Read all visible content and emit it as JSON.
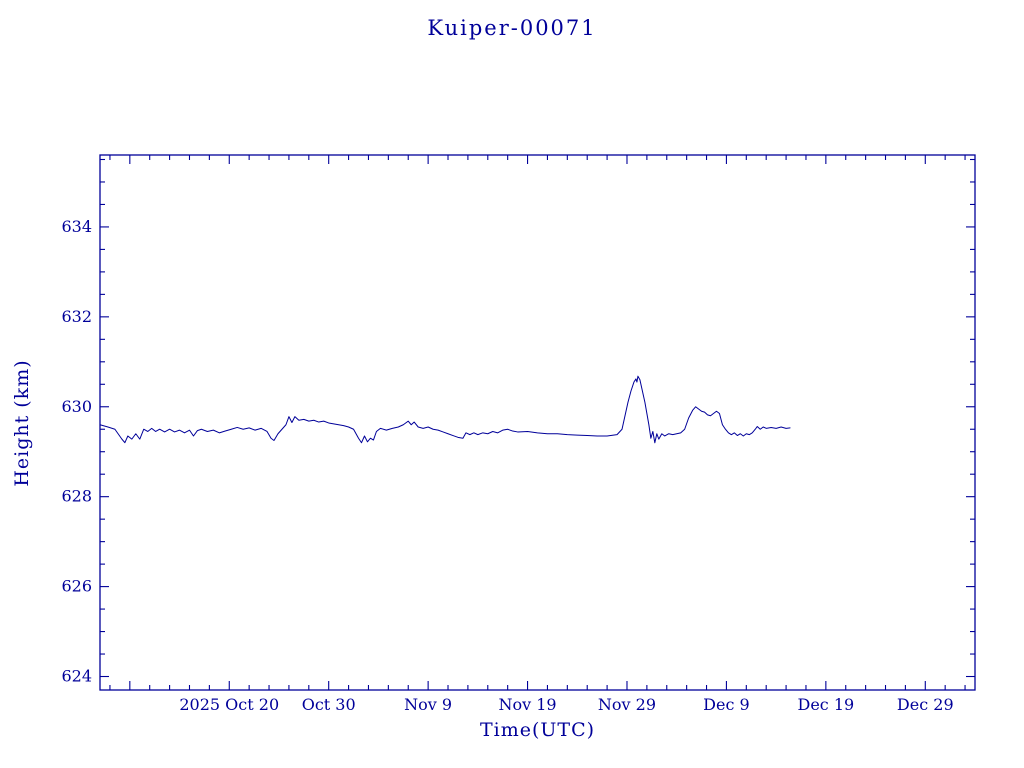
{
  "page": {
    "background": "#ffffff",
    "accent_color": "#000099"
  },
  "chart_data": {
    "type": "line",
    "title": "Kuiper-00071",
    "xlabel": "Time(UTC)",
    "ylabel": "Height (km)",
    "grid": false,
    "legend": false,
    "color": "#000099",
    "background": "#ffffff",
    "x_axis": {
      "units": "days, 0 = left axis edge (approx 2025 Oct 07)",
      "lim": [
        0,
        88
      ],
      "major_ticks": [
        {
          "pos": 13,
          "label": "2025 Oct 20"
        },
        {
          "pos": 23,
          "label": "Oct 30"
        },
        {
          "pos": 33,
          "label": "Nov 9"
        },
        {
          "pos": 43,
          "label": "Nov 19"
        },
        {
          "pos": 53,
          "label": "Nov 29"
        },
        {
          "pos": 63,
          "label": "Dec 9"
        },
        {
          "pos": 73,
          "label": "Dec 19"
        },
        {
          "pos": 83,
          "label": "Dec 29"
        }
      ],
      "unlabeled_major_ticks": [
        3
      ],
      "minor_step": 2
    },
    "y_axis": {
      "units": "km",
      "lim": [
        623.7,
        635.6
      ],
      "major_ticks": [
        {
          "pos": 624,
          "label": "624"
        },
        {
          "pos": 626,
          "label": "626"
        },
        {
          "pos": 628,
          "label": "628"
        },
        {
          "pos": 630,
          "label": "630"
        },
        {
          "pos": 632,
          "label": "632"
        },
        {
          "pos": 634,
          "label": "634"
        }
      ],
      "minor_step": 0.5
    },
    "series": [
      {
        "name": "Kuiper-00071 orbital height",
        "points": [
          [
            0,
            629.6
          ],
          [
            0.8,
            629.55
          ],
          [
            1.5,
            629.5
          ],
          [
            2.2,
            629.28
          ],
          [
            2.5,
            629.2
          ],
          [
            2.8,
            629.35
          ],
          [
            3.2,
            629.28
          ],
          [
            3.6,
            629.4
          ],
          [
            4,
            629.28
          ],
          [
            4.4,
            629.5
          ],
          [
            4.8,
            629.45
          ],
          [
            5.2,
            629.52
          ],
          [
            5.6,
            629.45
          ],
          [
            6,
            629.5
          ],
          [
            6.5,
            629.44
          ],
          [
            7,
            629.5
          ],
          [
            7.5,
            629.44
          ],
          [
            8,
            629.48
          ],
          [
            8.5,
            629.42
          ],
          [
            9,
            629.48
          ],
          [
            9.4,
            629.35
          ],
          [
            9.8,
            629.47
          ],
          [
            10.2,
            629.5
          ],
          [
            10.8,
            629.45
          ],
          [
            11.4,
            629.48
          ],
          [
            12,
            629.42
          ],
          [
            12.6,
            629.46
          ],
          [
            13.2,
            629.5
          ],
          [
            13.8,
            629.54
          ],
          [
            14.4,
            629.5
          ],
          [
            15,
            629.53
          ],
          [
            15.6,
            629.48
          ],
          [
            16.2,
            629.52
          ],
          [
            16.8,
            629.45
          ],
          [
            17.2,
            629.3
          ],
          [
            17.5,
            629.25
          ],
          [
            17.9,
            629.4
          ],
          [
            18.3,
            629.5
          ],
          [
            18.7,
            629.6
          ],
          [
            19,
            629.78
          ],
          [
            19.3,
            629.65
          ],
          [
            19.6,
            629.78
          ],
          [
            20,
            629.7
          ],
          [
            20.5,
            629.72
          ],
          [
            21,
            629.68
          ],
          [
            21.5,
            629.7
          ],
          [
            22,
            629.66
          ],
          [
            22.5,
            629.68
          ],
          [
            23,
            629.64
          ],
          [
            23.5,
            629.62
          ],
          [
            24,
            629.6
          ],
          [
            24.5,
            629.58
          ],
          [
            25,
            629.55
          ],
          [
            25.5,
            629.5
          ],
          [
            26,
            629.3
          ],
          [
            26.3,
            629.2
          ],
          [
            26.6,
            629.35
          ],
          [
            26.9,
            629.22
          ],
          [
            27.2,
            629.3
          ],
          [
            27.5,
            629.26
          ],
          [
            27.8,
            629.45
          ],
          [
            28.2,
            629.52
          ],
          [
            28.8,
            629.48
          ],
          [
            29.4,
            629.52
          ],
          [
            30,
            629.55
          ],
          [
            30.5,
            629.6
          ],
          [
            31,
            629.68
          ],
          [
            31.3,
            629.6
          ],
          [
            31.6,
            629.66
          ],
          [
            32,
            629.55
          ],
          [
            32.5,
            629.52
          ],
          [
            33,
            629.55
          ],
          [
            33.5,
            629.5
          ],
          [
            34,
            629.48
          ],
          [
            34.5,
            629.44
          ],
          [
            35,
            629.4
          ],
          [
            35.5,
            629.36
          ],
          [
            36,
            629.32
          ],
          [
            36.5,
            629.3
          ],
          [
            36.8,
            629.42
          ],
          [
            37.2,
            629.38
          ],
          [
            37.6,
            629.42
          ],
          [
            38,
            629.38
          ],
          [
            38.5,
            629.42
          ],
          [
            39,
            629.4
          ],
          [
            39.5,
            629.45
          ],
          [
            40,
            629.42
          ],
          [
            40.5,
            629.48
          ],
          [
            41,
            629.5
          ],
          [
            41.5,
            629.46
          ],
          [
            42,
            629.44
          ],
          [
            43,
            629.45
          ],
          [
            44,
            629.42
          ],
          [
            45,
            629.4
          ],
          [
            46,
            629.4
          ],
          [
            47,
            629.38
          ],
          [
            48,
            629.37
          ],
          [
            49,
            629.36
          ],
          [
            50,
            629.35
          ],
          [
            51,
            629.35
          ],
          [
            52,
            629.38
          ],
          [
            52.5,
            629.5
          ],
          [
            52.8,
            629.8
          ],
          [
            53.1,
            630.1
          ],
          [
            53.4,
            630.35
          ],
          [
            53.7,
            630.55
          ],
          [
            53.9,
            630.62
          ],
          [
            54,
            630.55
          ],
          [
            54.1,
            630.68
          ],
          [
            54.3,
            630.6
          ],
          [
            54.5,
            630.4
          ],
          [
            54.8,
            630.1
          ],
          [
            55,
            629.85
          ],
          [
            55.2,
            629.6
          ],
          [
            55.4,
            629.3
          ],
          [
            55.6,
            629.45
          ],
          [
            55.8,
            629.2
          ],
          [
            56,
            629.4
          ],
          [
            56.2,
            629.28
          ],
          [
            56.5,
            629.4
          ],
          [
            56.8,
            629.35
          ],
          [
            57.2,
            629.4
          ],
          [
            57.6,
            629.38
          ],
          [
            58,
            629.4
          ],
          [
            58.4,
            629.42
          ],
          [
            58.8,
            629.5
          ],
          [
            59.2,
            629.75
          ],
          [
            59.6,
            629.92
          ],
          [
            59.9,
            630
          ],
          [
            60.2,
            629.95
          ],
          [
            60.5,
            629.9
          ],
          [
            60.8,
            629.88
          ],
          [
            61.1,
            629.82
          ],
          [
            61.4,
            629.8
          ],
          [
            61.7,
            629.85
          ],
          [
            62,
            629.9
          ],
          [
            62.3,
            629.85
          ],
          [
            62.6,
            629.6
          ],
          [
            62.9,
            629.5
          ],
          [
            63.2,
            629.42
          ],
          [
            63.5,
            629.38
          ],
          [
            63.8,
            629.42
          ],
          [
            64.1,
            629.36
          ],
          [
            64.4,
            629.4
          ],
          [
            64.7,
            629.35
          ],
          [
            65,
            629.4
          ],
          [
            65.3,
            629.38
          ],
          [
            65.6,
            629.42
          ],
          [
            65.9,
            629.5
          ],
          [
            66.1,
            629.56
          ],
          [
            66.4,
            629.5
          ],
          [
            66.7,
            629.55
          ],
          [
            67,
            629.52
          ],
          [
            67.5,
            629.54
          ],
          [
            68,
            629.52
          ],
          [
            68.5,
            629.55
          ],
          [
            69,
            629.52
          ],
          [
            69.4,
            629.53
          ]
        ]
      }
    ]
  }
}
